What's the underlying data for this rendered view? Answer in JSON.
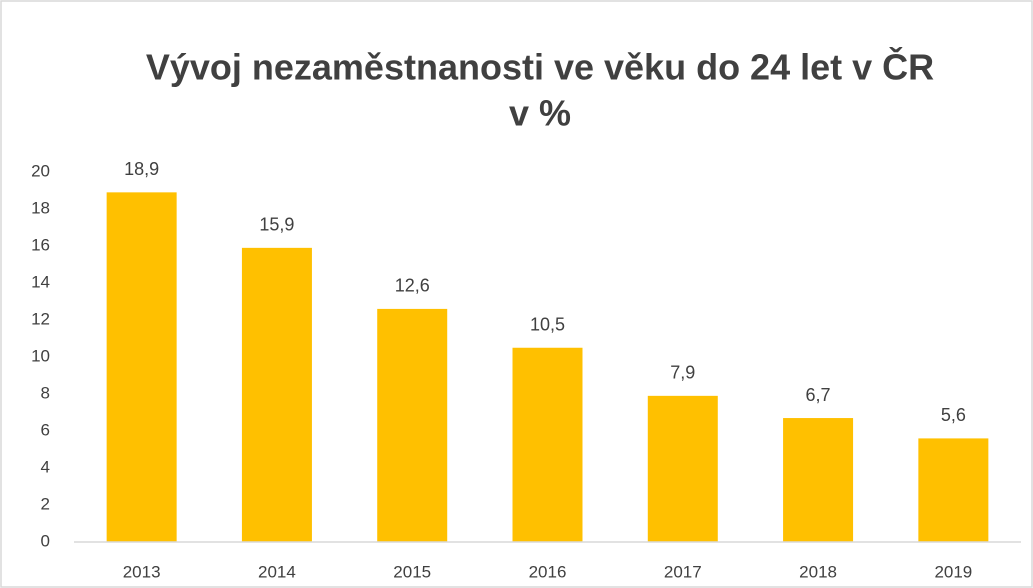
{
  "chart_data": {
    "type": "bar",
    "title": "Vývoj nezaměstnanosti ve věku do 24 let v ČR",
    "subtitle": "v %",
    "categories": [
      "2013",
      "2014",
      "2015",
      "2016",
      "2017",
      "2018",
      "2019"
    ],
    "values": [
      18.9,
      15.9,
      12.6,
      10.5,
      7.9,
      6.7,
      5.6
    ],
    "value_labels": [
      "18,9",
      "15,9",
      "12,6",
      "10,5",
      "7,9",
      "6,7",
      "5,6"
    ],
    "color": "#ffc000",
    "ylim": [
      0,
      20
    ],
    "yticks": [
      0,
      2,
      4,
      6,
      8,
      10,
      12,
      14,
      16,
      18,
      20
    ],
    "grid": false
  }
}
